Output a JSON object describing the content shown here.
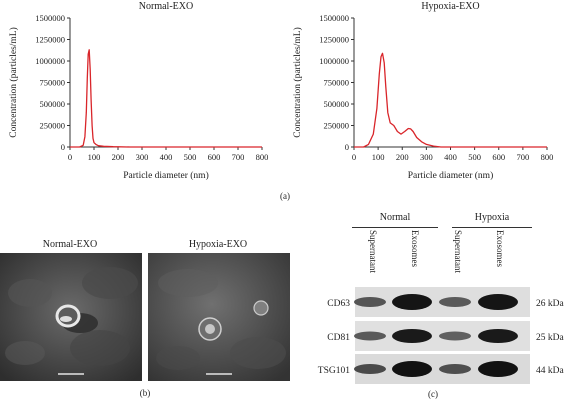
{
  "panels": {
    "a": "(a)",
    "b": "(b)",
    "c": "(c)"
  },
  "chart_data": [
    {
      "type": "line",
      "title": "Normal-EXO",
      "xlabel": "Particle diameter (nm)",
      "ylabel": "Concentration (particles/mL)",
      "xlim": [
        0,
        800
      ],
      "ylim": [
        0,
        1500000
      ],
      "xticks": [
        "0",
        "100",
        "200",
        "300",
        "400",
        "500",
        "600",
        "700",
        "800"
      ],
      "yticks": [
        "0",
        "250000",
        "500000",
        "750000",
        "1000000",
        "1250000",
        "1500000"
      ],
      "color": "#d9252a",
      "grid": false,
      "x": [
        0,
        40,
        55,
        62,
        68,
        72,
        76,
        80,
        84,
        88,
        92,
        96,
        100,
        108,
        118,
        140,
        180,
        250,
        400,
        600,
        800
      ],
      "y": [
        0,
        0,
        20000,
        120000,
        400000,
        800000,
        1080000,
        1130000,
        900000,
        550000,
        250000,
        100000,
        50000,
        30000,
        15000,
        8000,
        3000,
        0,
        0,
        0,
        0
      ]
    },
    {
      "type": "line",
      "title": "Hypoxia-EXO",
      "xlabel": "Particle diameter (nm)",
      "ylabel": "Concentration (particles/mL)",
      "xlim": [
        0,
        800
      ],
      "ylim": [
        0,
        1500000
      ],
      "xticks": [
        "0",
        "100",
        "200",
        "300",
        "400",
        "500",
        "600",
        "700",
        "800"
      ],
      "yticks": [
        "0",
        "250000",
        "500000",
        "750000",
        "1000000",
        "1250000",
        "1500000"
      ],
      "color": "#d9252a",
      "grid": false,
      "x": [
        0,
        40,
        60,
        80,
        95,
        105,
        112,
        118,
        125,
        132,
        140,
        150,
        165,
        180,
        195,
        210,
        225,
        235,
        245,
        260,
        280,
        300,
        330,
        360,
        400,
        800
      ],
      "y": [
        0,
        0,
        30000,
        150000,
        450000,
        850000,
        1050000,
        1090000,
        980000,
        700000,
        400000,
        280000,
        250000,
        180000,
        150000,
        180000,
        215000,
        210000,
        180000,
        110000,
        60000,
        30000,
        10000,
        0,
        0,
        0
      ]
    }
  ],
  "tem": {
    "normal_title": "Normal-EXO",
    "hypoxia_title": "Hypoxia-EXO"
  },
  "blot": {
    "groups": [
      "Normal",
      "Hypoxia"
    ],
    "lanes": [
      "Supernatant",
      "Exosomes",
      "Supernatant",
      "Exosomes"
    ],
    "rows": [
      {
        "name": "CD63",
        "size": "26 kDa"
      },
      {
        "name": "CD81",
        "size": "25 kDa"
      },
      {
        "name": "TSG101",
        "size": "44 kDa"
      }
    ]
  }
}
